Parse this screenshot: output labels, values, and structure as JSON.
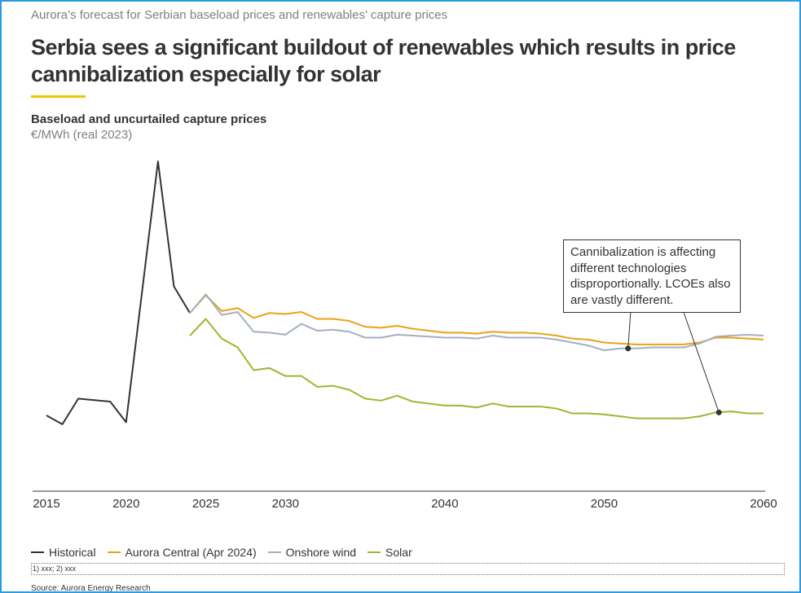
{
  "header": "Aurora’s forecast for Serbian baseload prices and renewables’ capture prices",
  "title": "Serbia sees a significant buildout of renewables which results in price cannibalization especially for solar",
  "chart_data": {
    "type": "line",
    "subtitle": "Baseload and uncurtailed capture prices",
    "y_label": "€/MWh (real 2023)",
    "xlim": [
      2015,
      2060
    ],
    "xticks": [
      2015,
      2020,
      2025,
      2030,
      2040,
      2050,
      2060
    ],
    "ylim": [
      0,
      350
    ],
    "series": [
      {
        "name": "Historical",
        "color": "#333333",
        "x": [
          2015,
          2016,
          2017,
          2019,
          2020,
          2022,
          2023,
          2024
        ],
        "values": [
          77,
          68,
          94,
          91,
          70,
          335,
          208,
          181
        ]
      },
      {
        "name": "Aurora Central (Apr 2024)",
        "color": "#e8a317",
        "x": [
          2024,
          2025,
          2026,
          2027,
          2028,
          2029,
          2030,
          2031,
          2032,
          2033,
          2034,
          2035,
          2036,
          2037,
          2038,
          2039,
          2040,
          2041,
          2042,
          2043,
          2044,
          2045,
          2046,
          2047,
          2048,
          2049,
          2050,
          2051,
          2052,
          2053,
          2054,
          2055,
          2056,
          2057,
          2058,
          2059,
          2060
        ],
        "values": [
          181,
          199,
          183,
          186,
          176,
          181,
          180,
          182,
          175,
          175,
          173,
          167,
          166,
          168,
          165,
          163,
          161,
          161,
          160,
          162,
          161,
          161,
          160,
          158,
          155,
          154,
          151,
          150,
          149,
          149,
          149,
          149,
          151,
          156,
          156,
          155,
          154
        ]
      },
      {
        "name": "Onshore wind",
        "color": "#a3afc2",
        "x": [
          2024,
          2025,
          2026,
          2027,
          2028,
          2029,
          2030,
          2031,
          2032,
          2033,
          2034,
          2035,
          2036,
          2037,
          2038,
          2039,
          2040,
          2041,
          2042,
          2043,
          2044,
          2045,
          2046,
          2047,
          2048,
          2049,
          2050,
          2051,
          2052,
          2053,
          2054,
          2055,
          2056,
          2057,
          2058,
          2059,
          2060
        ],
        "values": [
          181,
          200,
          179,
          182,
          162,
          161,
          159,
          170,
          163,
          164,
          162,
          156,
          156,
          159,
          158,
          157,
          156,
          156,
          155,
          158,
          156,
          156,
          156,
          154,
          151,
          148,
          143,
          145,
          145,
          146,
          146,
          146,
          150,
          157,
          158,
          159,
          158
        ]
      },
      {
        "name": "Solar",
        "color": "#99b832",
        "x": [
          2024,
          2025,
          2026,
          2027,
          2028,
          2029,
          2030,
          2031,
          2032,
          2033,
          2034,
          2035,
          2036,
          2037,
          2038,
          2039,
          2040,
          2041,
          2042,
          2043,
          2044,
          2045,
          2046,
          2047,
          2048,
          2049,
          2050,
          2051,
          2052,
          2053,
          2054,
          2055,
          2056,
          2057,
          2058,
          2059,
          2060
        ],
        "values": [
          158,
          175,
          155,
          146,
          123,
          125,
          117,
          117,
          106,
          107,
          103,
          94,
          92,
          97,
          91,
          89,
          87,
          87,
          85,
          89,
          86,
          86,
          86,
          84,
          79,
          79,
          78,
          76,
          74,
          74,
          74,
          74,
          76,
          80,
          81,
          79,
          79
        ]
      }
    ],
    "annotation": {
      "text": "Cannibalization is affecting different technologies disproportionally. LCOEs also are vastly different.",
      "points": [
        {
          "x": 2051.5,
          "y": 145
        },
        {
          "x": 2057.2,
          "y": 80
        }
      ]
    }
  },
  "footnote": "1) xxx; 2) xxx",
  "source": "Source: Aurora Energy Research"
}
